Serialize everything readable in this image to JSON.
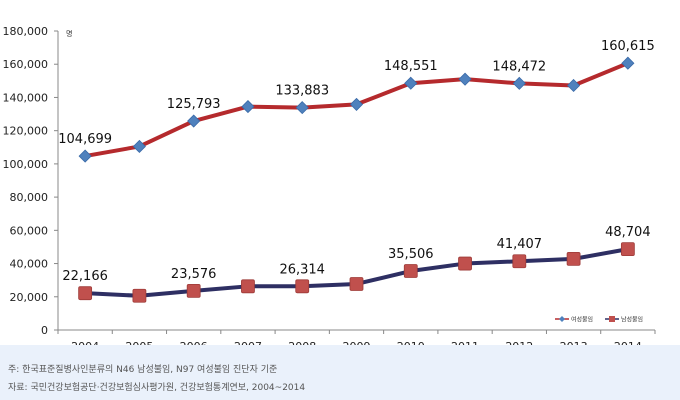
{
  "chart_data": {
    "type": "line",
    "title": "",
    "xlabel": "",
    "ylabel": "명",
    "ylim": [
      0,
      180000
    ],
    "yticks": [
      0,
      20000,
      40000,
      60000,
      80000,
      100000,
      120000,
      140000,
      160000,
      180000
    ],
    "ytick_labels": [
      "0",
      "20,000",
      "40,000",
      "60,000",
      "80,000",
      "100,000",
      "120,000",
      "140,000",
      "160,000",
      "180,000"
    ],
    "categories": [
      "2004",
      "2005",
      "2006",
      "2007",
      "2008",
      "2009",
      "2010",
      "2011",
      "2012",
      "2013",
      "2014"
    ],
    "grid": false,
    "legend_position": "bottom-right",
    "series": [
      {
        "name": "여성불임",
        "color": "#b52a2d",
        "marker_color": "#4f81bd",
        "marker": "diamond",
        "values": [
          104699,
          110500,
          125793,
          134500,
          133883,
          135800,
          148551,
          151000,
          148472,
          147200,
          160615
        ],
        "labels": [
          "104,699",
          "",
          "125,793",
          "",
          "133,883",
          "",
          "148,551",
          "",
          "148,472",
          "",
          "160,615"
        ]
      },
      {
        "name": "남성불임",
        "color": "#2e2f63",
        "marker_color": "#c0504d",
        "marker": "square",
        "values": [
          22166,
          20600,
          23576,
          26300,
          26314,
          27700,
          35506,
          40000,
          41407,
          42800,
          48704
        ],
        "labels": [
          "22,166",
          "",
          "23,576",
          "",
          "26,314",
          "",
          "35,506",
          "",
          "41,407",
          "",
          "48,704"
        ]
      }
    ]
  },
  "footnotes": {
    "note1": "주: 한국표준질병사인분류의 N46 남성불임, N97 여성불임 진단자 기준",
    "note2": "자료: 국민건강보험공단·건강보험심사평가원, 건강보험통계연보, 2004~2014"
  }
}
